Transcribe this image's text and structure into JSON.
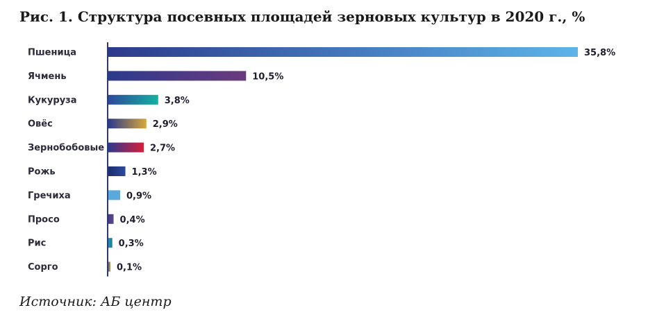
{
  "chart_data": {
    "type": "bar",
    "orientation": "horizontal",
    "title": "Рис. 1. Структура посевных площадей зерновых культур в 2020 г., %",
    "source": "Источник: АБ центр",
    "categories": [
      "Пшеница",
      "Ячмень",
      "Кукуруза",
      "Овёс",
      "Зернобобовые",
      "Рожь",
      "Гречиха",
      "Просо",
      "Рис",
      "Сорго"
    ],
    "values": [
      35.8,
      10.5,
      3.8,
      2.9,
      2.7,
      1.3,
      0.9,
      0.4,
      0.3,
      0.1
    ],
    "value_labels": [
      "35,8%",
      "10,5%",
      "3,8%",
      "2,9%",
      "2,7%",
      "1,3%",
      "0,9%",
      "0,4%",
      "0,3%",
      "0,1%"
    ],
    "xlim": [
      0,
      35.8
    ],
    "grid": false,
    "legend": "none",
    "bar_gradients": [
      [
        "#2c3a8c",
        "#5db4e8"
      ],
      [
        "#2c3a8c",
        "#6b3a7e"
      ],
      [
        "#2c4a9c",
        "#14b0a0"
      ],
      [
        "#2c3a8c",
        "#d6a83a"
      ],
      [
        "#2c3a8c",
        "#d81e3a"
      ],
      [
        "#1d2d6e",
        "#2c4aa0"
      ],
      [
        "#5aa8dc",
        "#5aa8dc"
      ],
      [
        "#4a3a80",
        "#5a4a8c"
      ],
      [
        "#2a8fb0",
        "#1a7aa0"
      ],
      [
        "#6a6a6a",
        "#b0a060"
      ]
    ],
    "axis_color": "#2c3a6e"
  }
}
